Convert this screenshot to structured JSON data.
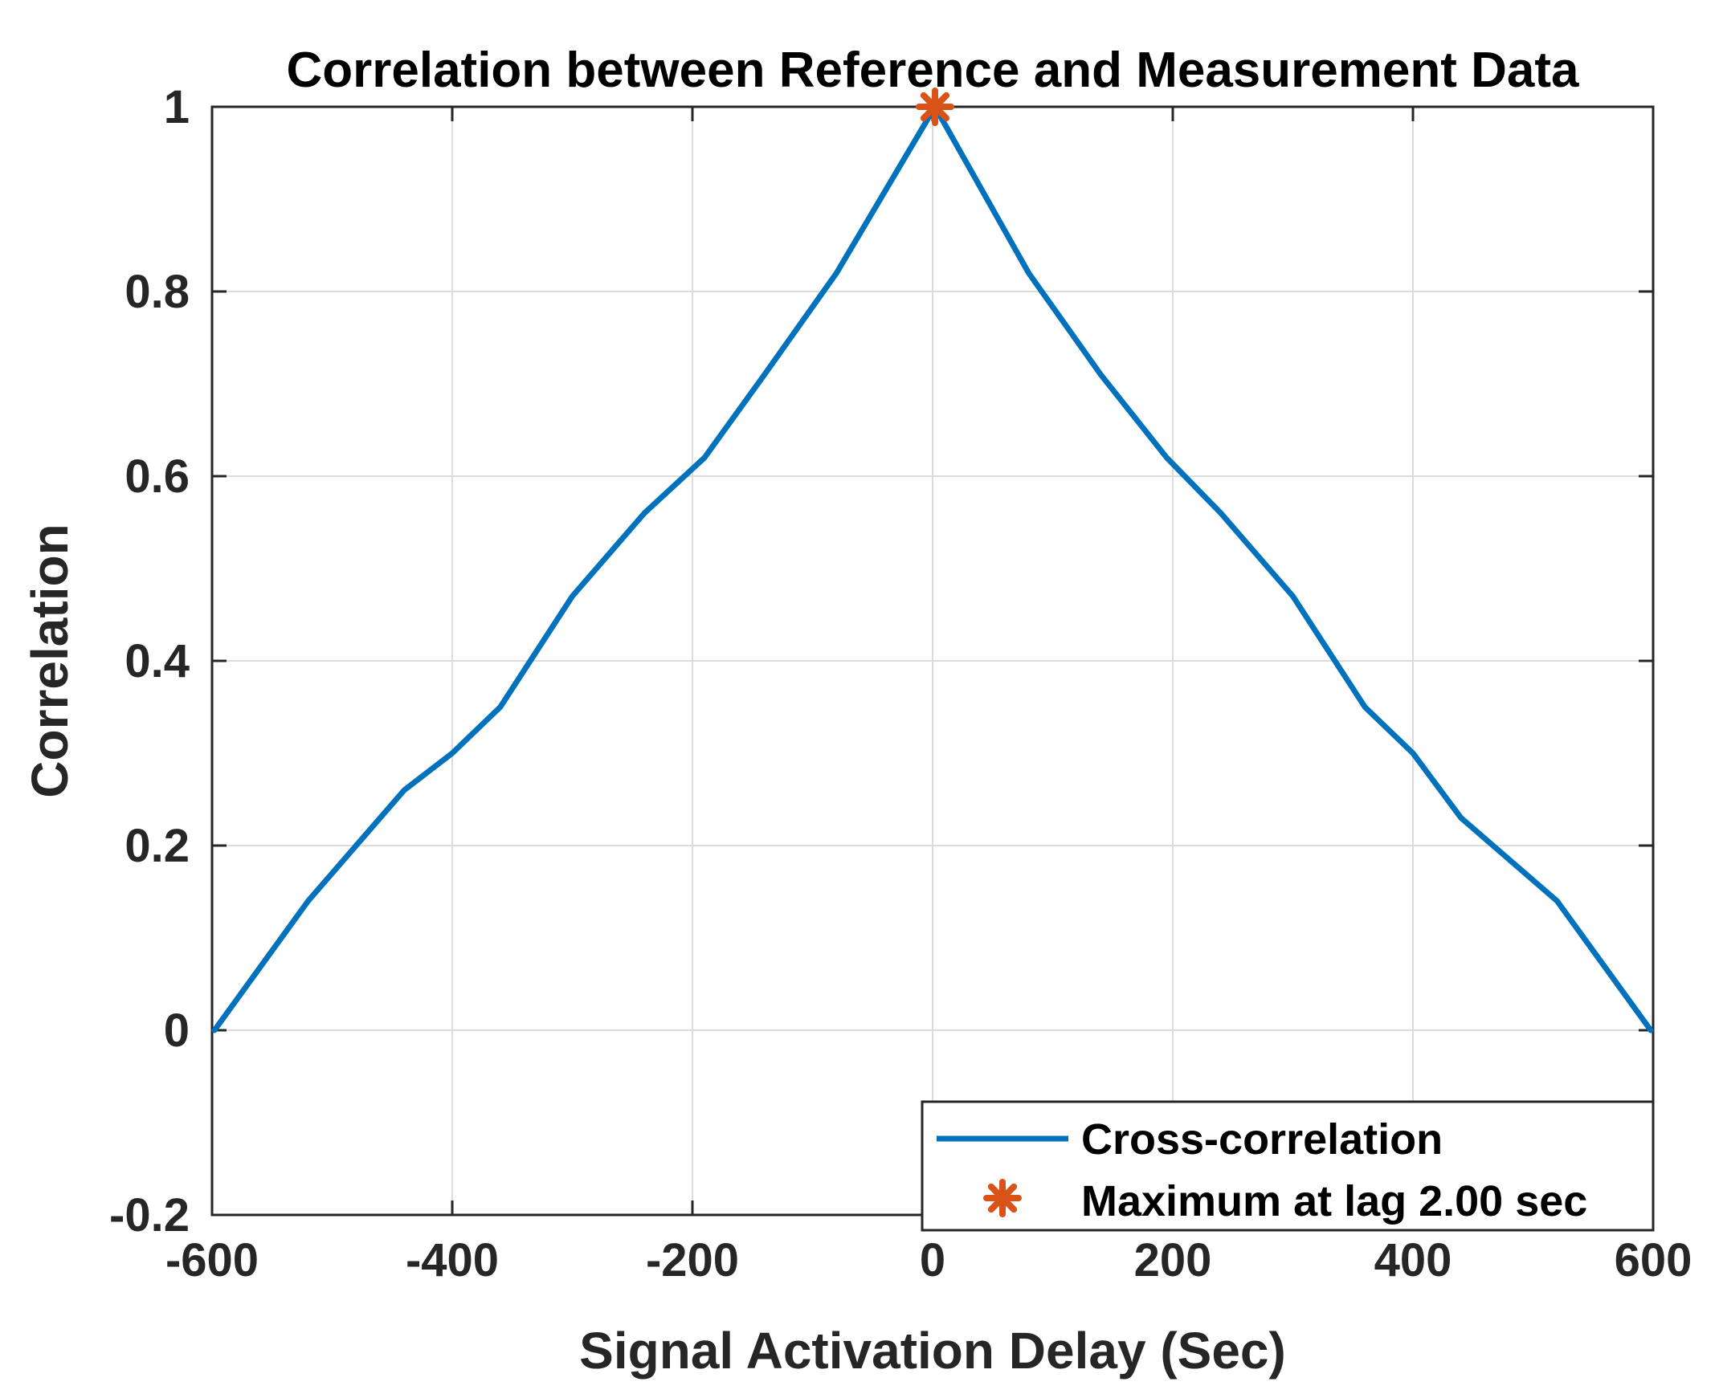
{
  "chart_data": {
    "type": "line",
    "title": "Correlation between Reference and Measurement Data",
    "xlabel": "Signal Activation Delay (Sec)",
    "ylabel": "Correlation",
    "xlim": [
      -600,
      600
    ],
    "ylim": [
      -0.2,
      1
    ],
    "xticks": [
      -600,
      -400,
      -200,
      0,
      200,
      400,
      600
    ],
    "xtick_labels": [
      "-600",
      "-400",
      "-200",
      "0",
      "200",
      "400",
      "600"
    ],
    "yticks": [
      -0.2,
      0,
      0.2,
      0.4,
      0.6,
      0.8,
      1
    ],
    "ytick_labels": [
      "-0.2",
      "0",
      "0.2",
      "0.4",
      "0.6",
      "0.8",
      "1"
    ],
    "grid": true,
    "legend_position": "bottom-right",
    "series": [
      {
        "name": "Cross-correlation",
        "color": "#0072BD",
        "x": [
          -598,
          -520,
          -440,
          -400,
          -360,
          -300,
          -240,
          -190,
          -140,
          -80,
          2,
          80,
          140,
          195,
          240,
          300,
          360,
          400,
          440,
          520,
          598
        ],
        "y": [
          0.0,
          0.14,
          0.26,
          0.3,
          0.35,
          0.47,
          0.56,
          0.62,
          0.71,
          0.82,
          1.0,
          0.82,
          0.71,
          0.62,
          0.56,
          0.47,
          0.35,
          0.3,
          0.23,
          0.14,
          0.0
        ]
      },
      {
        "name": "Maximum at lag 2.00 sec",
        "color": "#D95319",
        "marker": "asterisk",
        "x": [
          2
        ],
        "y": [
          1.0
        ]
      }
    ]
  }
}
